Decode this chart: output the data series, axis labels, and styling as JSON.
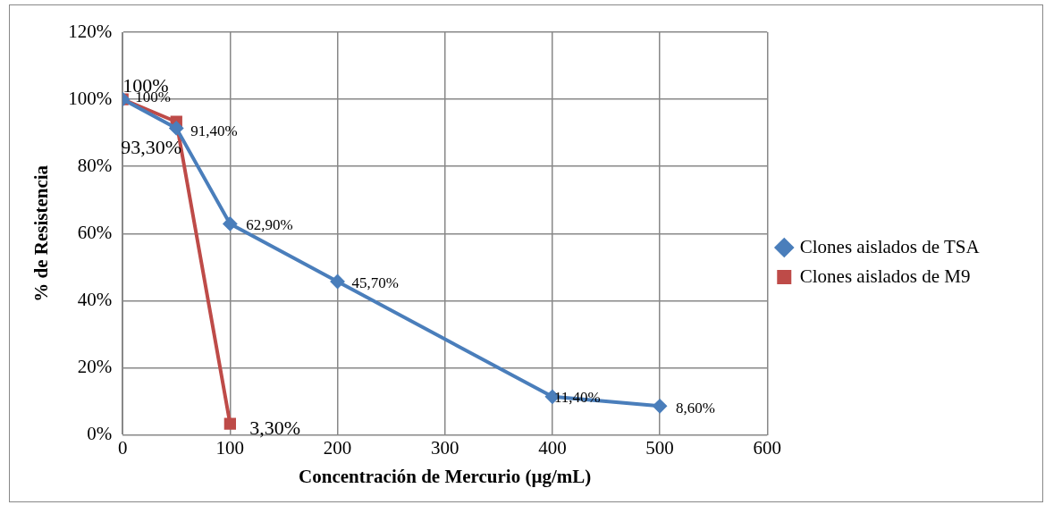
{
  "chart_data": {
    "type": "line",
    "xlabel": "Concentración de Mercurio (µg/mL)",
    "ylabel": "% de Resistencia",
    "xlim": [
      0,
      600
    ],
    "xticks": [
      0,
      100,
      200,
      300,
      400,
      500,
      600
    ],
    "ylim": [
      0,
      120
    ],
    "yticks": [
      {
        "value": 0,
        "label": "0%"
      },
      {
        "value": 20,
        "label": "20%"
      },
      {
        "value": 40,
        "label": "40%"
      },
      {
        "value": 60,
        "label": "60%"
      },
      {
        "value": 80,
        "label": "80%"
      },
      {
        "value": 100,
        "label": "100%"
      },
      {
        "value": 120,
        "label": "120%"
      }
    ],
    "grid": true,
    "legend": "right",
    "line_style": "solid",
    "series": [
      {
        "name": "Clones aislados de TSA",
        "color": "#4a7ebb",
        "marker": "diamond",
        "x": [
          0,
          50,
          100,
          200,
          400,
          500
        ],
        "values": [
          100,
          91.4,
          62.9,
          45.7,
          11.4,
          8.6
        ],
        "value_labels": [
          "100%",
          "91,40%",
          "62,90%",
          "45,70%",
          "11,40%",
          "8,60%"
        ]
      },
      {
        "name": "Clones aislados de M9",
        "color": "#be4b48",
        "marker": "square",
        "x": [
          0,
          50,
          100
        ],
        "values": [
          100,
          93.3,
          3.3
        ],
        "value_labels": [
          "100%",
          "93,30%",
          "3,30%"
        ]
      }
    ]
  }
}
